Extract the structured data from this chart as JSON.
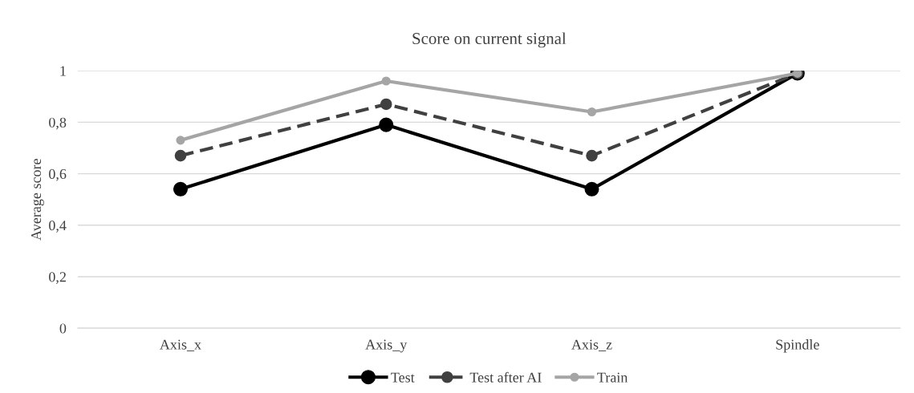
{
  "chart_data": {
    "type": "line",
    "title": "Score on current signal",
    "ylabel": "Average score",
    "categories": [
      "Axis_x",
      "Axis_y",
      "Axis_z",
      "Spindle"
    ],
    "series": [
      {
        "name": "Test",
        "color": "#000000",
        "values": [
          0.54,
          0.79,
          0.54,
          0.99
        ],
        "line_style": "solid"
      },
      {
        "name": "Test after AI",
        "color": "#404040",
        "values": [
          0.67,
          0.87,
          0.67,
          0.99
        ],
        "line_style": "dashed"
      },
      {
        "name": "Train",
        "color": "#a5a5a5",
        "values": [
          0.73,
          0.96,
          0.84,
          0.99
        ],
        "line_style": "solid"
      }
    ],
    "ylim": [
      0,
      1
    ],
    "yticks": [
      0,
      {
        "value": 0.2,
        "label": "0,2"
      },
      {
        "value": 0.4,
        "label": "0,4"
      },
      {
        "value": 0.6,
        "label": "0,6"
      },
      {
        "value": 0.8,
        "label": "0,8"
      },
      1
    ],
    "grid": "y",
    "legend": "bottom",
    "marker": "circle"
  }
}
